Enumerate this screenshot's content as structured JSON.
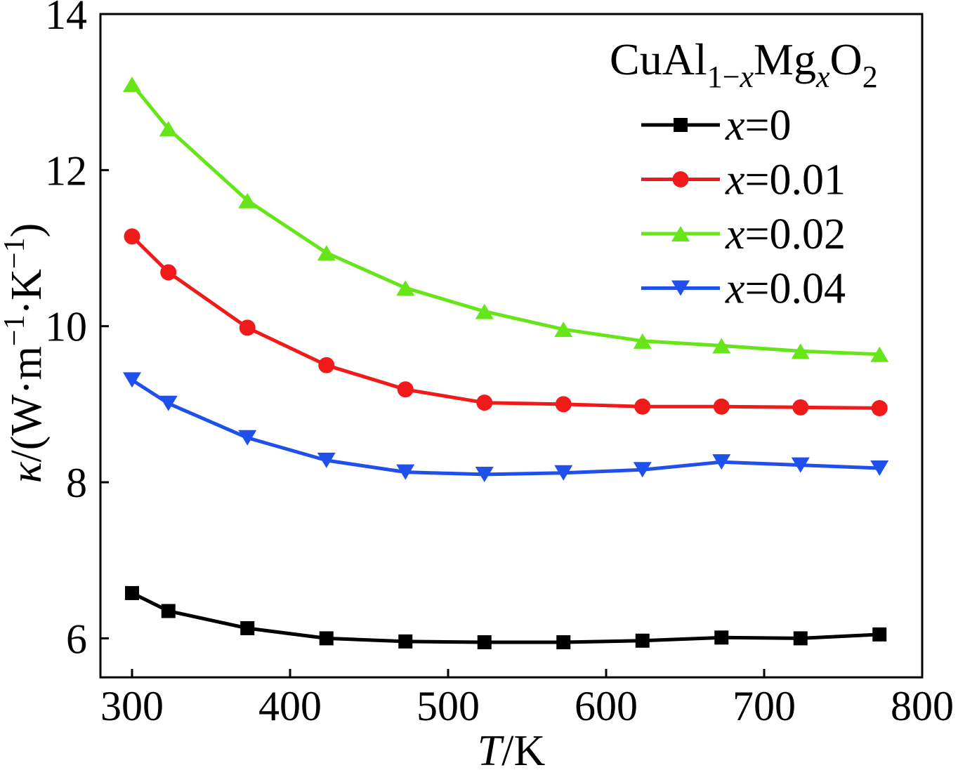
{
  "chart_data": {
    "type": "line",
    "x": [
      300,
      323,
      373,
      423,
      473,
      523,
      573,
      623,
      673,
      723,
      773
    ],
    "series": [
      {
        "name": "x=0",
        "marker": "square",
        "color": "#000000",
        "values": [
          6.58,
          6.35,
          6.13,
          6.0,
          5.96,
          5.95,
          5.95,
          5.97,
          6.01,
          6.0,
          6.05
        ]
      },
      {
        "name": "x=0.01",
        "marker": "circle",
        "color": "#f01a1a",
        "values": [
          11.15,
          10.69,
          9.98,
          9.5,
          9.19,
          9.02,
          9.0,
          8.97,
          8.97,
          8.96,
          8.95
        ]
      },
      {
        "name": "x=0.02",
        "marker": "triangle-up",
        "color": "#66e619",
        "values": [
          13.1,
          12.53,
          11.61,
          10.94,
          10.49,
          10.19,
          9.96,
          9.81,
          9.75,
          9.68,
          9.64
        ]
      },
      {
        "name": "x=0.04",
        "marker": "triangle-down",
        "color": "#1f50ec",
        "values": [
          9.31,
          9.01,
          8.57,
          8.28,
          8.13,
          8.1,
          8.12,
          8.16,
          8.26,
          8.22,
          8.18
        ]
      }
    ],
    "xlim": [
      280,
      800
    ],
    "ylim": [
      5.5,
      14
    ],
    "xticks": [
      300,
      400,
      500,
      600,
      700,
      800
    ],
    "yticks": [
      6,
      8,
      10,
      12,
      14
    ],
    "xlabel": {
      "symbol": "T",
      "unit": "/K"
    },
    "ylabel": {
      "symbol": "κ",
      "unit_open": "/(W·m",
      "exp1": "−1",
      "unit_mid": "·K",
      "exp2": "−1",
      "unit_close": ")"
    },
    "legend": {
      "position": "top-right",
      "title": {
        "t1": "CuAl",
        "s1a": "1−",
        "s1b": "x",
        "t2": "Mg",
        "s2": "x",
        "t3": "O",
        "s3": "2"
      }
    },
    "grid": false
  }
}
